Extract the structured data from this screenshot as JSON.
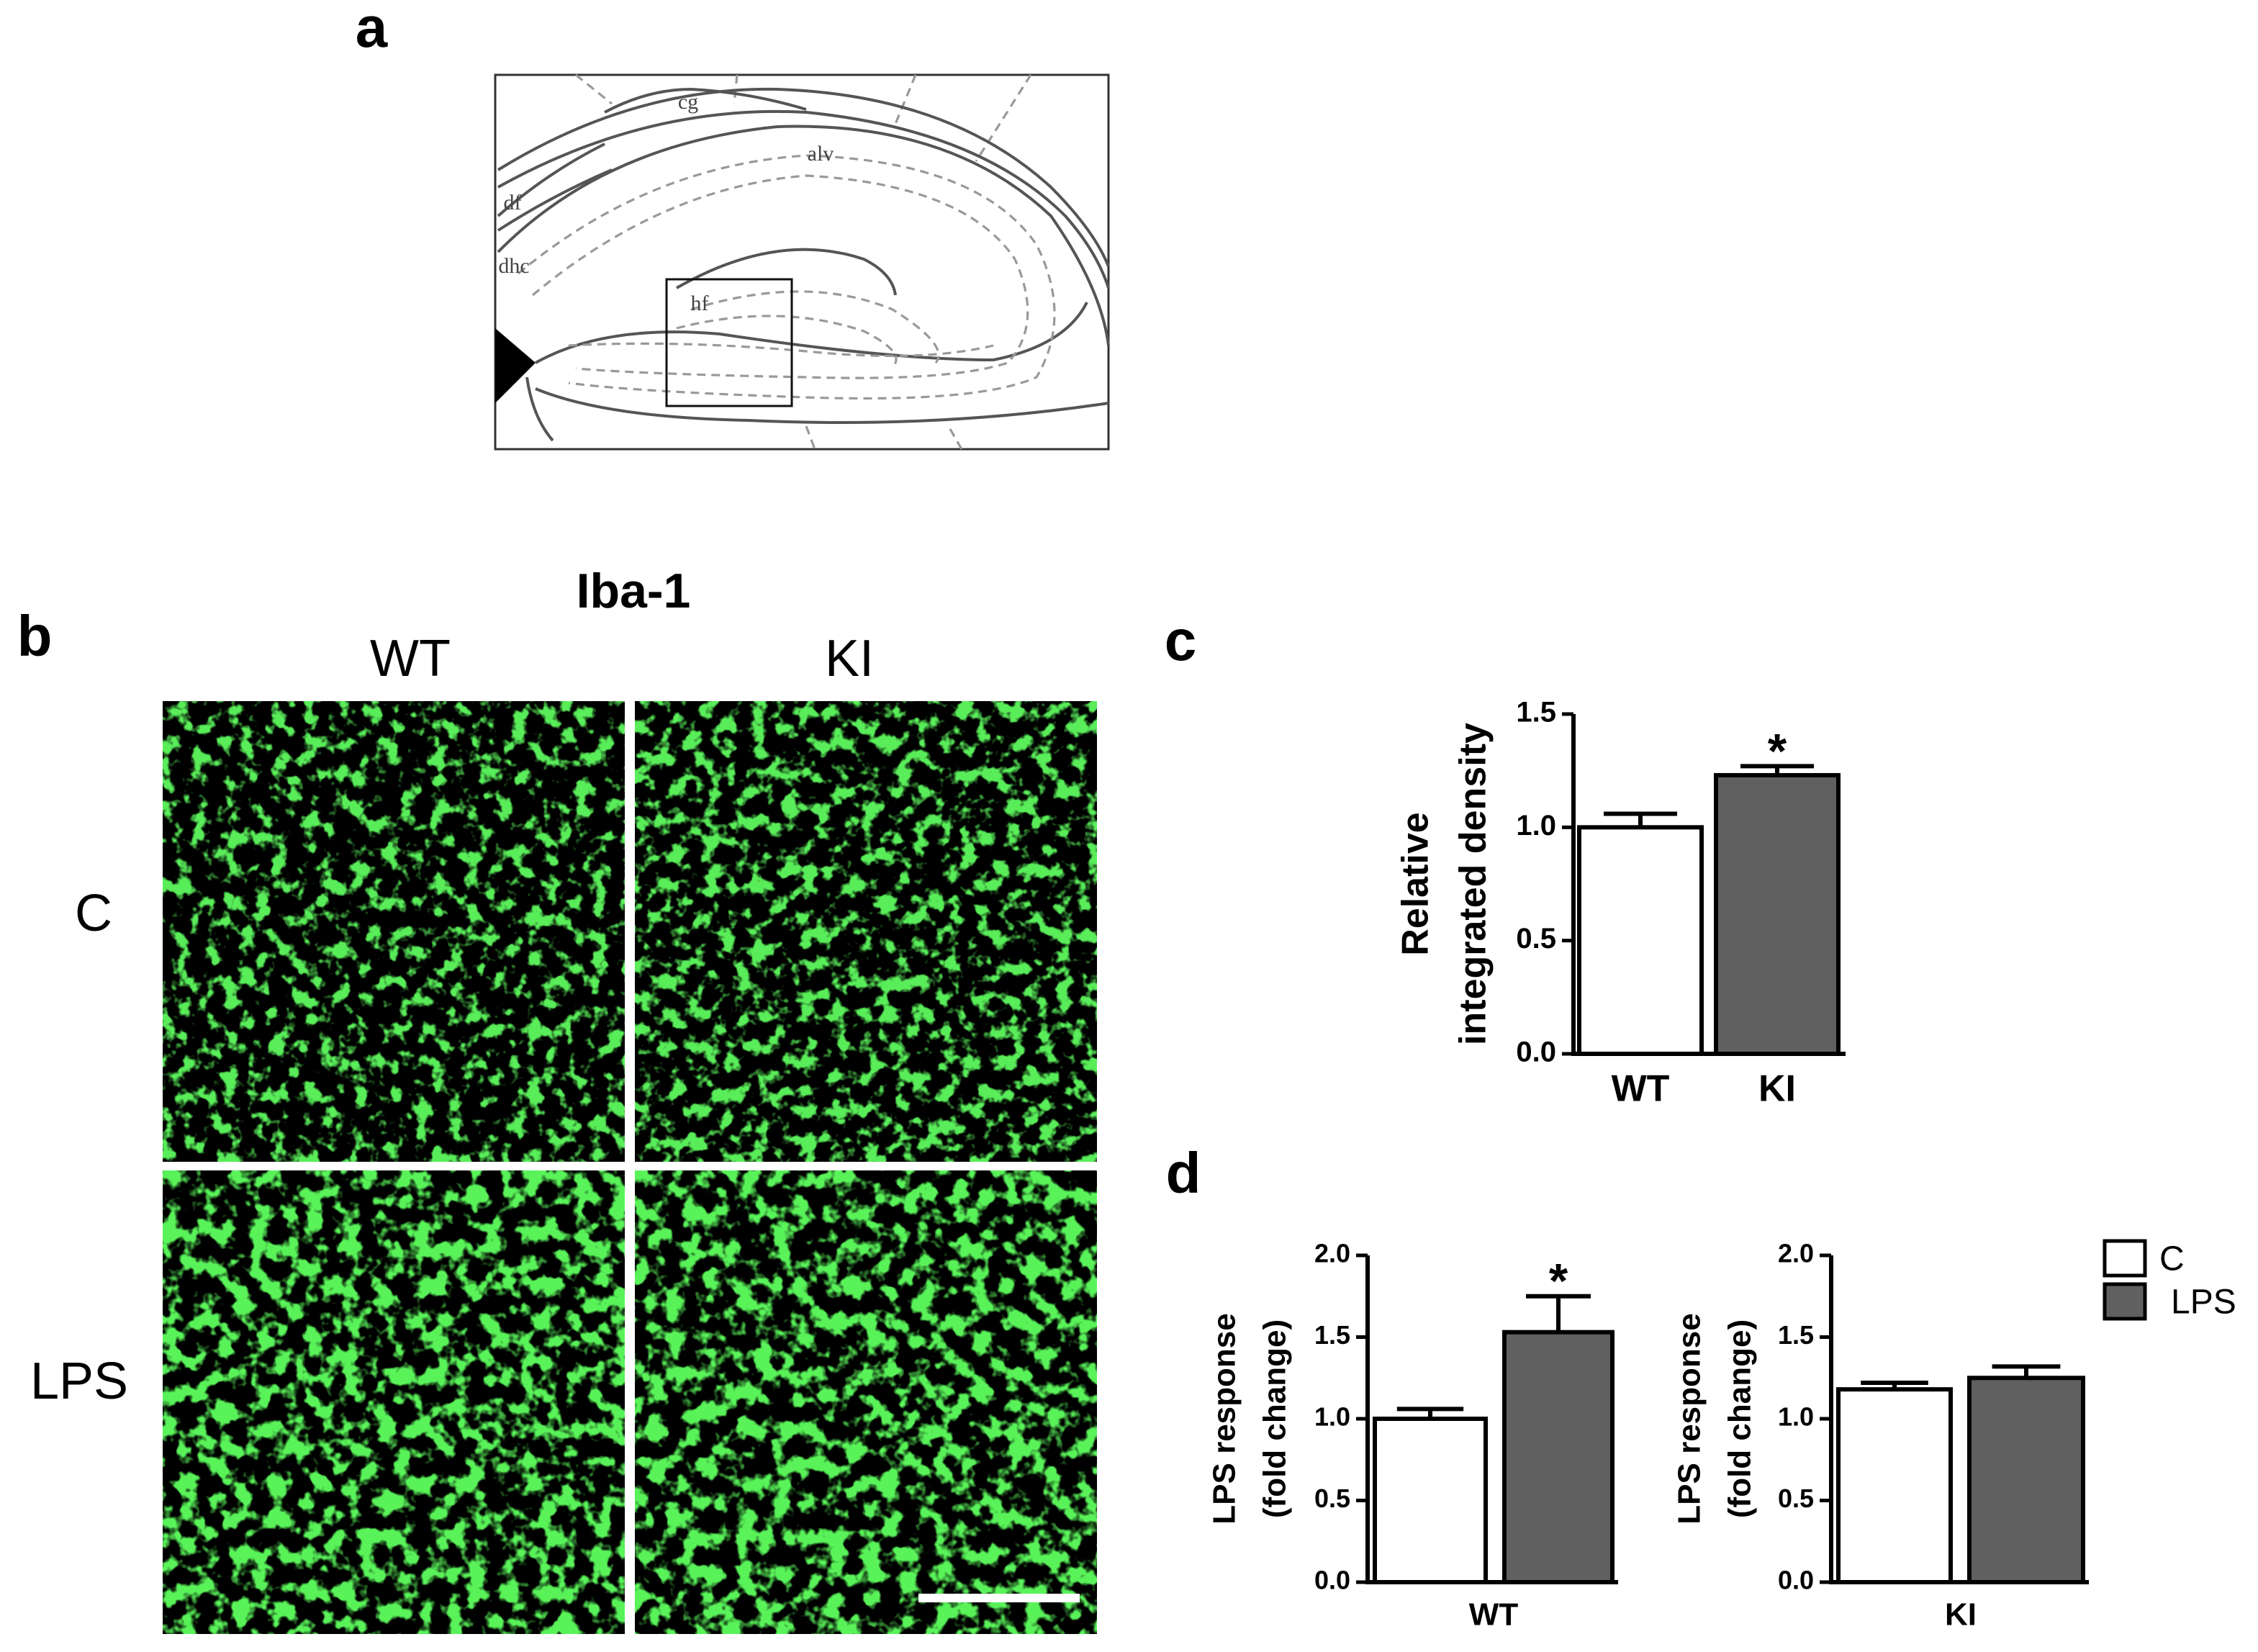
{
  "panel_labels": [
    "a",
    "b",
    "c",
    "d"
  ],
  "diagram": {
    "labels": [
      "cg",
      "alv",
      "df",
      "dhc",
      "hf"
    ]
  },
  "micrographs": {
    "title": "Iba-1",
    "columns": [
      "WT",
      "KI"
    ],
    "rows": [
      "C",
      "LPS"
    ]
  },
  "chart_data": [
    {
      "type": "bar",
      "y_label": [
        "Relative",
        "integrated density"
      ],
      "categories": [
        "WT",
        "KI"
      ],
      "values": [
        1.0,
        1.23
      ],
      "errors": [
        0.06,
        0.04
      ],
      "colors": [
        "#ffffff",
        "#606060"
      ],
      "annotation": "*",
      "ylim": [
        0,
        1.5
      ],
      "yticks": [
        {
          "value": 0,
          "label": "0.0"
        },
        0.5,
        {
          "value": 1,
          "label": "1.0"
        },
        1.5
      ]
    },
    {
      "type": "grouped_bar",
      "y_label": [
        "LPS response",
        "(fold change)"
      ],
      "categories": [
        "WT",
        "KI"
      ],
      "series": [
        {
          "name": "C",
          "color": "#ffffff",
          "values": [
            1.0,
            1.18
          ],
          "errors": [
            0.06,
            0.04
          ]
        },
        {
          "name": "LPS",
          "color": "#606060",
          "values": [
            1.53,
            1.25
          ],
          "errors": [
            0.22,
            0.07
          ]
        }
      ],
      "annotation": "*",
      "legend": "right",
      "ylim": [
        0,
        2
      ],
      "yticks": [
        {
          "value": 0,
          "label": "0.0"
        },
        0.5,
        {
          "value": 1,
          "label": "1.0"
        },
        1.5,
        {
          "value": 2,
          "label": "2.0"
        }
      ]
    }
  ]
}
